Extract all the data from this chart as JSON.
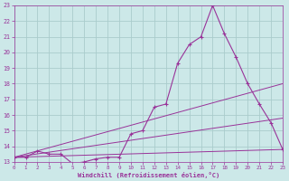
{
  "xlabel": "Windchill (Refroidissement éolien,°C)",
  "bg_color": "#cce8e8",
  "line_color": "#993399",
  "grid_color": "#aacccc",
  "xlim": [
    0,
    23
  ],
  "ylim": [
    13,
    23
  ],
  "yticks": [
    13,
    14,
    15,
    16,
    17,
    18,
    19,
    20,
    21,
    22,
    23
  ],
  "xticks": [
    0,
    1,
    2,
    3,
    4,
    5,
    6,
    7,
    8,
    9,
    10,
    11,
    12,
    13,
    14,
    15,
    16,
    17,
    18,
    19,
    20,
    21,
    22,
    23
  ],
  "series": [
    [
      0,
      13.3
    ],
    [
      1,
      13.3
    ],
    [
      2,
      13.7
    ],
    [
      3,
      13.5
    ],
    [
      4,
      13.5
    ],
    [
      5,
      12.9
    ],
    [
      6,
      13.0
    ],
    [
      7,
      13.2
    ],
    [
      8,
      13.3
    ],
    [
      9,
      13.3
    ],
    [
      10,
      14.8
    ],
    [
      11,
      15.0
    ],
    [
      12,
      16.5
    ],
    [
      13,
      16.7
    ],
    [
      14,
      19.3
    ],
    [
      15,
      20.5
    ],
    [
      16,
      21.0
    ],
    [
      17,
      23.0
    ],
    [
      18,
      21.2
    ],
    [
      19,
      19.7
    ],
    [
      20,
      18.0
    ],
    [
      21,
      16.7
    ],
    [
      22,
      15.5
    ],
    [
      23,
      13.8
    ]
  ],
  "trend_lines": [
    [
      [
        0,
        13.3
      ],
      [
        23,
        13.8
      ]
    ],
    [
      [
        0,
        13.3
      ],
      [
        23,
        18.0
      ]
    ],
    [
      [
        0,
        13.3
      ],
      [
        23,
        15.8
      ]
    ]
  ]
}
